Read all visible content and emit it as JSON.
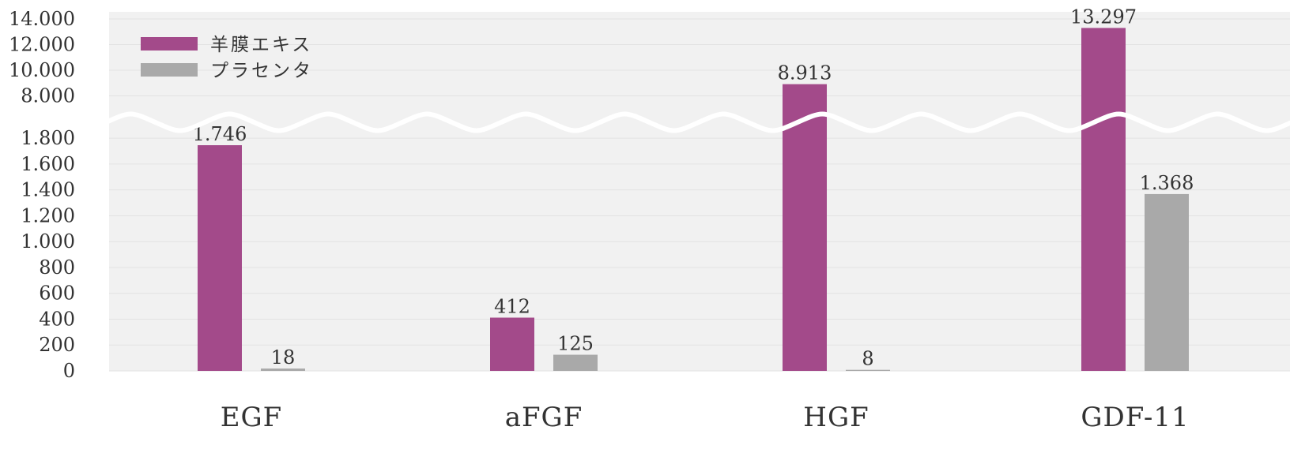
{
  "colors": {
    "plot_background": "#f1f1f1",
    "gridline": "#e2e2e2",
    "series_amnion": "#a34a8a",
    "series_placenta": "#a9a9a9",
    "axis_break": "#ffffff",
    "text": "#333333"
  },
  "chart_data": {
    "type": "bar",
    "title": "",
    "xlabel": "",
    "ylabel": "",
    "categories": [
      "EGF",
      "aFGF",
      "HGF",
      "GDF-11"
    ],
    "series": [
      {
        "name": "羊膜エキス",
        "values": [
          1746,
          412,
          8913,
          13297
        ],
        "labels": [
          "1.746",
          "412",
          "8.913",
          "13.297"
        ]
      },
      {
        "name": "プラセンタ",
        "values": [
          18,
          125,
          8,
          1368
        ],
        "labels": [
          "18",
          "125",
          "8",
          "1.368"
        ]
      }
    ],
    "axis_break": {
      "lower_segment_max": 1800,
      "upper_segment_min": 8000
    },
    "y_ticks_lower": [
      {
        "value": 0,
        "label": "0"
      },
      {
        "value": 200,
        "label": "200"
      },
      {
        "value": 400,
        "label": "400"
      },
      {
        "value": 600,
        "label": "600"
      },
      {
        "value": 800,
        "label": "800"
      },
      {
        "value": 1000,
        "label": "1.000"
      },
      {
        "value": 1200,
        "label": "1.200"
      },
      {
        "value": 1400,
        "label": "1.400"
      },
      {
        "value": 1600,
        "label": "1.600"
      },
      {
        "value": 1800,
        "label": "1.800"
      }
    ],
    "y_ticks_upper": [
      {
        "value": 8000,
        "label": "8.000"
      },
      {
        "value": 10000,
        "label": "10.000"
      },
      {
        "value": 12000,
        "label": "12.000"
      },
      {
        "value": 14000,
        "label": "14.000"
      }
    ],
    "ylim": [
      0,
      14000
    ],
    "grid": true,
    "legend_position": "top-left"
  }
}
